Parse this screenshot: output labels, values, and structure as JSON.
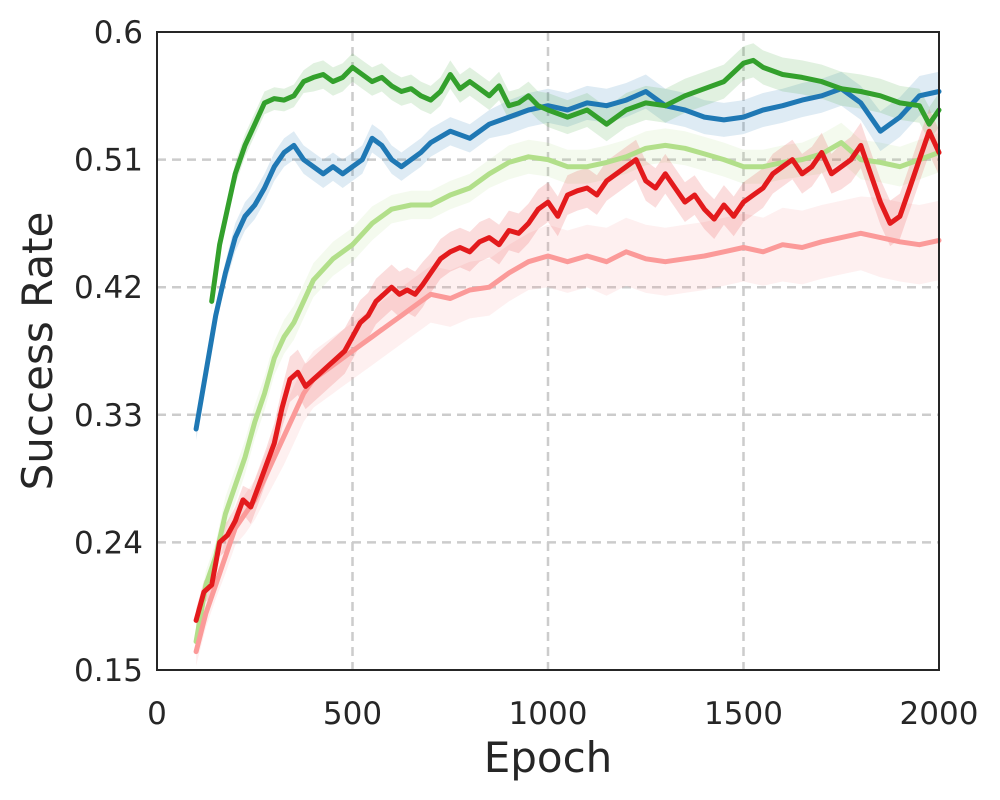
{
  "chart_data": {
    "type": "line",
    "title": "",
    "xlabel": "Epoch",
    "ylabel": "Success Rate",
    "xlim": [
      0,
      2000
    ],
    "ylim": [
      0.15,
      0.6
    ],
    "xticks": [
      0,
      500,
      1000,
      1500,
      2000
    ],
    "xtick_labels": [
      "0",
      "500",
      "1000",
      "1500",
      "2000"
    ],
    "yticks": [
      0.15,
      0.24,
      0.33,
      0.42,
      0.51,
      0.6
    ],
    "ytick_labels": [
      "0.15",
      "0.24",
      "0.33",
      "0.42",
      "0.51",
      "0.6"
    ],
    "grid": true,
    "legend": "none",
    "series": [
      {
        "color": "#b2df8a",
        "x": [
          100,
          125,
          150,
          175,
          200,
          225,
          250,
          275,
          300,
          325,
          350,
          375,
          400,
          450,
          500,
          550,
          600,
          650,
          700,
          750,
          800,
          850,
          900,
          950,
          1000,
          1050,
          1100,
          1150,
          1200,
          1250,
          1300,
          1350,
          1400,
          1450,
          1500,
          1550,
          1600,
          1650,
          1700,
          1750,
          1800,
          1850,
          1900,
          1950,
          2000
        ],
        "y": [
          0.17,
          0.21,
          0.23,
          0.26,
          0.28,
          0.3,
          0.325,
          0.345,
          0.37,
          0.385,
          0.395,
          0.41,
          0.425,
          0.44,
          0.45,
          0.465,
          0.475,
          0.478,
          0.478,
          0.485,
          0.49,
          0.5,
          0.508,
          0.512,
          0.51,
          0.505,
          0.505,
          0.508,
          0.512,
          0.518,
          0.52,
          0.518,
          0.514,
          0.51,
          0.505,
          0.505,
          0.508,
          0.51,
          0.514,
          0.522,
          0.51,
          0.508,
          0.505,
          0.51,
          0.515
        ],
        "band": [
          0.01,
          0.01,
          0.01,
          0.012,
          0.012,
          0.012,
          0.012,
          0.012,
          0.012,
          0.012,
          0.012,
          0.012,
          0.012,
          0.012,
          0.012,
          0.012,
          0.01,
          0.01,
          0.01,
          0.01,
          0.01,
          0.01,
          0.012,
          0.012,
          0.012,
          0.012,
          0.012,
          0.012,
          0.012,
          0.012,
          0.012,
          0.012,
          0.012,
          0.012,
          0.012,
          0.012,
          0.012,
          0.012,
          0.014,
          0.014,
          0.014,
          0.014,
          0.014,
          0.014,
          0.014
        ]
      },
      {
        "color": "#fb9a99",
        "x": [
          100,
          125,
          150,
          175,
          200,
          225,
          250,
          275,
          300,
          325,
          350,
          375,
          400,
          425,
          450,
          475,
          500,
          525,
          550,
          575,
          600,
          625,
          650,
          675,
          700,
          750,
          800,
          850,
          900,
          950,
          1000,
          1050,
          1100,
          1150,
          1200,
          1250,
          1300,
          1350,
          1400,
          1450,
          1500,
          1550,
          1600,
          1650,
          1700,
          1750,
          1800,
          1850,
          1900,
          1950,
          2000
        ],
        "y": [
          0.163,
          0.19,
          0.21,
          0.23,
          0.25,
          0.26,
          0.27,
          0.285,
          0.3,
          0.315,
          0.33,
          0.345,
          0.355,
          0.36,
          0.365,
          0.37,
          0.375,
          0.38,
          0.385,
          0.39,
          0.395,
          0.4,
          0.405,
          0.41,
          0.415,
          0.412,
          0.418,
          0.42,
          0.43,
          0.438,
          0.442,
          0.438,
          0.442,
          0.438,
          0.445,
          0.44,
          0.438,
          0.44,
          0.442,
          0.445,
          0.448,
          0.445,
          0.45,
          0.448,
          0.452,
          0.455,
          0.458,
          0.455,
          0.452,
          0.45,
          0.453
        ],
        "band": [
          0.01,
          0.01,
          0.01,
          0.012,
          0.012,
          0.014,
          0.014,
          0.016,
          0.018,
          0.02,
          0.02,
          0.02,
          0.02,
          0.02,
          0.02,
          0.02,
          0.02,
          0.02,
          0.02,
          0.02,
          0.02,
          0.02,
          0.02,
          0.02,
          0.02,
          0.02,
          0.02,
          0.02,
          0.02,
          0.02,
          0.022,
          0.022,
          0.022,
          0.024,
          0.024,
          0.024,
          0.024,
          0.024,
          0.024,
          0.024,
          0.024,
          0.024,
          0.026,
          0.026,
          0.026,
          0.026,
          0.026,
          0.028,
          0.028,
          0.028,
          0.028
        ]
      },
      {
        "color": "#1f78b4",
        "x": [
          100,
          125,
          150,
          175,
          200,
          225,
          250,
          275,
          300,
          325,
          350,
          375,
          400,
          425,
          450,
          475,
          500,
          525,
          550,
          575,
          600,
          625,
          650,
          675,
          700,
          750,
          800,
          850,
          900,
          950,
          1000,
          1050,
          1100,
          1150,
          1200,
          1250,
          1300,
          1350,
          1400,
          1450,
          1500,
          1550,
          1600,
          1650,
          1700,
          1750,
          1800,
          1850,
          1900,
          1950,
          2000
        ],
        "y": [
          0.32,
          0.36,
          0.4,
          0.43,
          0.455,
          0.47,
          0.478,
          0.49,
          0.505,
          0.515,
          0.52,
          0.51,
          0.505,
          0.5,
          0.505,
          0.5,
          0.505,
          0.51,
          0.525,
          0.52,
          0.51,
          0.505,
          0.51,
          0.515,
          0.522,
          0.53,
          0.525,
          0.535,
          0.54,
          0.545,
          0.548,
          0.545,
          0.55,
          0.548,
          0.552,
          0.558,
          0.548,
          0.545,
          0.54,
          0.538,
          0.54,
          0.545,
          0.548,
          0.552,
          0.555,
          0.56,
          0.55,
          0.53,
          0.54,
          0.555,
          0.558
        ],
        "band": [
          0.008,
          0.008,
          0.008,
          0.008,
          0.01,
          0.01,
          0.01,
          0.01,
          0.01,
          0.01,
          0.01,
          0.01,
          0.01,
          0.01,
          0.01,
          0.01,
          0.01,
          0.01,
          0.01,
          0.01,
          0.01,
          0.01,
          0.01,
          0.01,
          0.01,
          0.01,
          0.01,
          0.01,
          0.012,
          0.012,
          0.012,
          0.012,
          0.012,
          0.012,
          0.012,
          0.012,
          0.012,
          0.012,
          0.012,
          0.012,
          0.012,
          0.012,
          0.012,
          0.012,
          0.012,
          0.012,
          0.012,
          0.014,
          0.014,
          0.014,
          0.014
        ]
      },
      {
        "color": "#33a02c",
        "x": [
          140,
          160,
          180,
          200,
          225,
          250,
          275,
          300,
          325,
          350,
          375,
          400,
          425,
          450,
          475,
          500,
          525,
          550,
          575,
          600,
          625,
          650,
          675,
          700,
          725,
          750,
          775,
          800,
          825,
          850,
          875,
          900,
          925,
          950,
          975,
          1000,
          1050,
          1100,
          1150,
          1200,
          1250,
          1300,
          1350,
          1400,
          1450,
          1500,
          1525,
          1550,
          1600,
          1650,
          1700,
          1750,
          1800,
          1850,
          1900,
          1950,
          1975,
          2000
        ],
        "y": [
          0.41,
          0.45,
          0.475,
          0.5,
          0.52,
          0.535,
          0.55,
          0.553,
          0.552,
          0.555,
          0.565,
          0.568,
          0.57,
          0.565,
          0.568,
          0.575,
          0.57,
          0.565,
          0.568,
          0.562,
          0.558,
          0.56,
          0.555,
          0.552,
          0.558,
          0.57,
          0.56,
          0.565,
          0.56,
          0.555,
          0.562,
          0.548,
          0.55,
          0.555,
          0.548,
          0.545,
          0.54,
          0.545,
          0.535,
          0.545,
          0.55,
          0.548,
          0.555,
          0.56,
          0.565,
          0.578,
          0.58,
          0.575,
          0.57,
          0.568,
          0.565,
          0.56,
          0.558,
          0.555,
          0.55,
          0.548,
          0.535,
          0.545
        ],
        "band": [
          0.006,
          0.006,
          0.006,
          0.008,
          0.008,
          0.008,
          0.008,
          0.008,
          0.008,
          0.008,
          0.008,
          0.01,
          0.01,
          0.01,
          0.01,
          0.01,
          0.01,
          0.01,
          0.01,
          0.01,
          0.01,
          0.01,
          0.01,
          0.01,
          0.01,
          0.01,
          0.01,
          0.01,
          0.01,
          0.01,
          0.01,
          0.01,
          0.01,
          0.01,
          0.01,
          0.012,
          0.012,
          0.012,
          0.012,
          0.012,
          0.012,
          0.012,
          0.012,
          0.012,
          0.012,
          0.012,
          0.012,
          0.012,
          0.012,
          0.012,
          0.012,
          0.012,
          0.012,
          0.012,
          0.012,
          0.012,
          0.012,
          0.012
        ]
      },
      {
        "color": "#e31a1c",
        "x": [
          100,
          120,
          140,
          160,
          180,
          200,
          220,
          240,
          260,
          280,
          300,
          320,
          340,
          360,
          380,
          400,
          420,
          440,
          460,
          480,
          500,
          520,
          540,
          560,
          580,
          600,
          620,
          640,
          660,
          680,
          700,
          725,
          750,
          775,
          800,
          825,
          850,
          875,
          900,
          925,
          950,
          975,
          1000,
          1025,
          1050,
          1075,
          1100,
          1125,
          1150,
          1175,
          1200,
          1225,
          1250,
          1275,
          1300,
          1325,
          1350,
          1375,
          1400,
          1425,
          1450,
          1475,
          1500,
          1525,
          1550,
          1575,
          1600,
          1625,
          1650,
          1675,
          1700,
          1725,
          1750,
          1775,
          1800,
          1825,
          1850,
          1875,
          1900,
          1925,
          1950,
          1975,
          2000
        ],
        "y": [
          0.185,
          0.205,
          0.21,
          0.24,
          0.245,
          0.255,
          0.27,
          0.265,
          0.28,
          0.295,
          0.31,
          0.335,
          0.355,
          0.36,
          0.35,
          0.355,
          0.36,
          0.365,
          0.37,
          0.375,
          0.385,
          0.395,
          0.4,
          0.41,
          0.415,
          0.42,
          0.415,
          0.418,
          0.415,
          0.422,
          0.43,
          0.44,
          0.445,
          0.448,
          0.445,
          0.452,
          0.455,
          0.45,
          0.46,
          0.458,
          0.465,
          0.475,
          0.48,
          0.47,
          0.485,
          0.488,
          0.49,
          0.485,
          0.495,
          0.5,
          0.505,
          0.51,
          0.495,
          0.49,
          0.5,
          0.49,
          0.48,
          0.485,
          0.475,
          0.468,
          0.478,
          0.47,
          0.48,
          0.485,
          0.49,
          0.5,
          0.505,
          0.51,
          0.5,
          0.505,
          0.515,
          0.5,
          0.505,
          0.51,
          0.52,
          0.5,
          0.48,
          0.465,
          0.47,
          0.49,
          0.51,
          0.53,
          0.515
        ],
        "band": [
          0.008,
          0.008,
          0.008,
          0.01,
          0.01,
          0.01,
          0.01,
          0.012,
          0.012,
          0.012,
          0.014,
          0.014,
          0.016,
          0.016,
          0.016,
          0.016,
          0.016,
          0.016,
          0.016,
          0.016,
          0.016,
          0.016,
          0.016,
          0.016,
          0.016,
          0.016,
          0.016,
          0.016,
          0.016,
          0.016,
          0.014,
          0.014,
          0.014,
          0.014,
          0.014,
          0.014,
          0.014,
          0.014,
          0.014,
          0.014,
          0.014,
          0.014,
          0.014,
          0.014,
          0.014,
          0.014,
          0.014,
          0.014,
          0.014,
          0.014,
          0.014,
          0.014,
          0.014,
          0.014,
          0.014,
          0.014,
          0.014,
          0.014,
          0.014,
          0.014,
          0.014,
          0.014,
          0.014,
          0.014,
          0.014,
          0.014,
          0.014,
          0.014,
          0.014,
          0.014,
          0.014,
          0.014,
          0.016,
          0.016,
          0.016,
          0.016,
          0.016,
          0.016,
          0.016,
          0.016,
          0.016,
          0.016,
          0.016
        ]
      }
    ]
  }
}
